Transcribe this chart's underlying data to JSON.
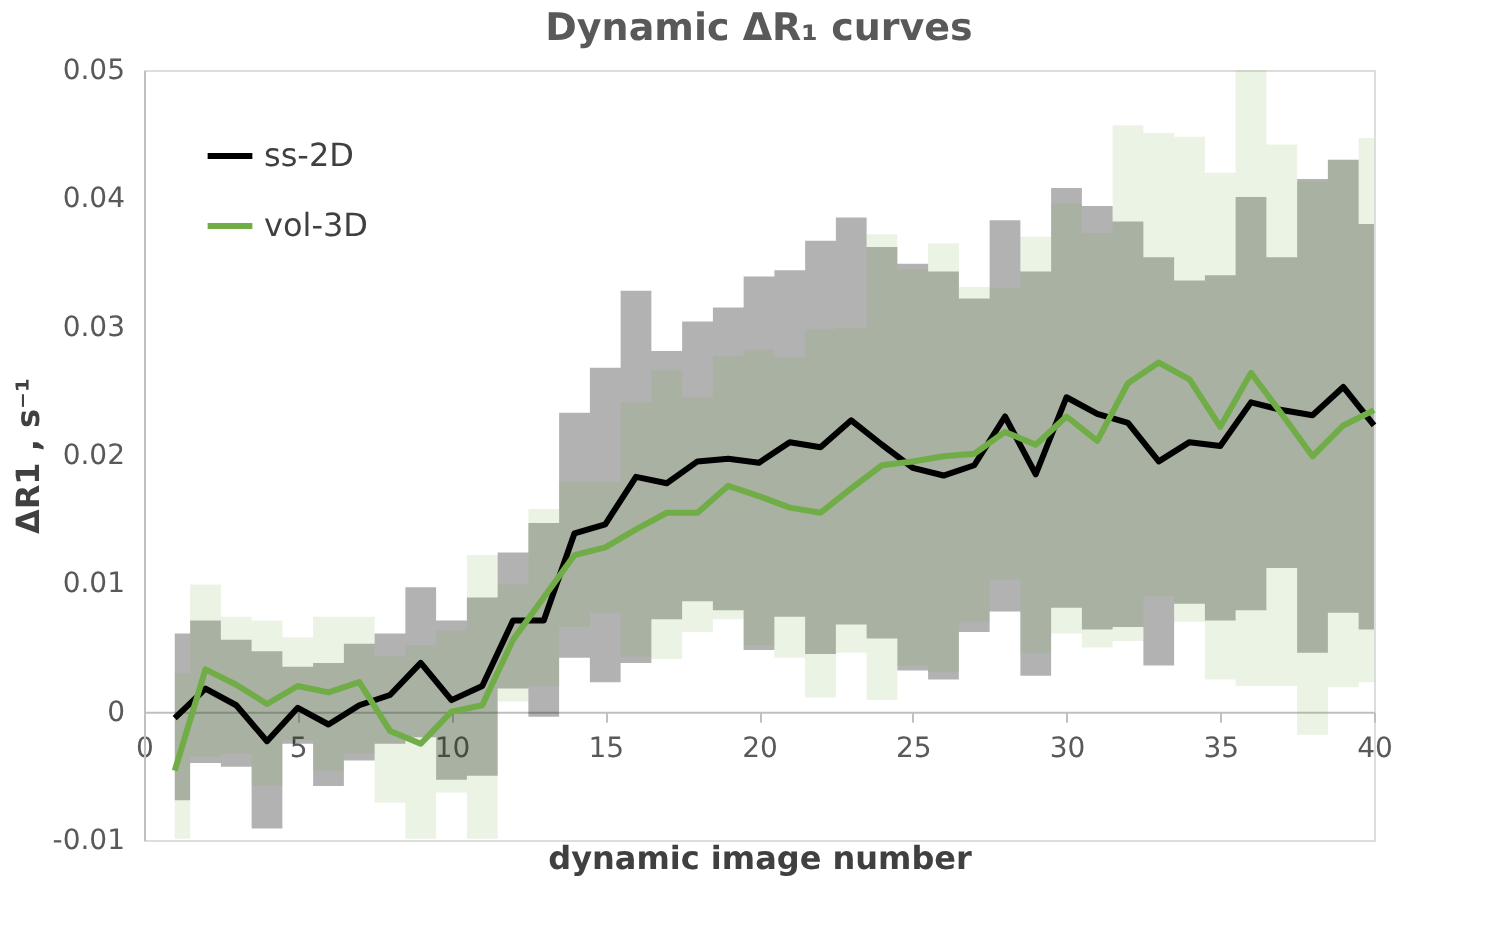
{
  "chart_data": {
    "type": "line",
    "title": "Dynamic ΔR₁ curves",
    "xlabel": "dynamic image number",
    "ylabel": "ΔR1 , s⁻¹",
    "x": [
      1,
      2,
      3,
      4,
      5,
      6,
      7,
      8,
      9,
      10,
      11,
      12,
      13,
      14,
      15,
      16,
      17,
      18,
      19,
      20,
      21,
      22,
      23,
      24,
      25,
      26,
      27,
      28,
      29,
      30,
      31,
      32,
      33,
      34,
      35,
      36,
      37,
      38,
      39,
      40
    ],
    "series": [
      {
        "name": "ss-2D",
        "color": "#000000",
        "values": [
          -0.0005,
          0.0018,
          0.0005,
          -0.0023,
          0.0003,
          -0.001,
          0.0005,
          0.0013,
          0.0038,
          0.0009,
          0.002,
          0.0071,
          0.0071,
          0.0139,
          0.0146,
          0.0183,
          0.0178,
          0.0195,
          0.0197,
          0.0194,
          0.021,
          0.0206,
          0.0227,
          0.0208,
          0.019,
          0.0184,
          0.0192,
          0.023,
          0.0185,
          0.0245,
          0.0232,
          0.0225,
          0.0195,
          0.021,
          0.0207,
          0.0241,
          0.0235,
          0.0231,
          0.0253,
          0.0223
        ],
        "lower": [
          -0.0069,
          -0.004,
          -0.0043,
          -0.0091,
          -0.0025,
          -0.0058,
          -0.0038,
          -0.0025,
          -0.002,
          -0.0053,
          -0.005,
          0.0018,
          -0.0004,
          0.0042,
          0.0023,
          0.0038,
          0.0072,
          0.0086,
          0.0079,
          0.0048,
          0.0074,
          0.0045,
          0.0068,
          0.0057,
          0.0032,
          0.0025,
          0.0062,
          0.0078,
          0.0028,
          0.0081,
          0.0064,
          0.0066,
          0.0036,
          0.0084,
          0.0071,
          0.0079,
          0.0112,
          0.0046,
          0.0077,
          0.0064
        ],
        "upper": [
          0.0061,
          0.0071,
          0.0056,
          0.0047,
          0.0035,
          0.0038,
          0.0053,
          0.0061,
          0.0097,
          0.0071,
          0.0089,
          0.0124,
          0.0147,
          0.0233,
          0.0268,
          0.0328,
          0.0281,
          0.0304,
          0.0315,
          0.0339,
          0.0344,
          0.0367,
          0.0385,
          0.0362,
          0.0349,
          0.0343,
          0.0322,
          0.0383,
          0.0343,
          0.0408,
          0.0394,
          0.0382,
          0.0354,
          0.0336,
          0.034,
          0.0401,
          0.0354,
          0.0415,
          0.043,
          0.038
        ]
      },
      {
        "name": "vol-3D",
        "color": "#70ad47",
        "values": [
          -0.0046,
          0.0033,
          0.0021,
          0.0006,
          0.002,
          0.0015,
          0.0023,
          -0.0015,
          -0.0025,
          0.0,
          0.0005,
          0.0056,
          0.0089,
          0.0122,
          0.0128,
          0.0142,
          0.0155,
          0.0155,
          0.0176,
          0.0168,
          0.0159,
          0.0155,
          0.0174,
          0.0192,
          0.0195,
          0.0199,
          0.0201,
          0.0218,
          0.0208,
          0.023,
          0.0211,
          0.0256,
          0.0272,
          0.0259,
          0.0222,
          0.0264,
          0.0232,
          0.0199,
          0.0223,
          0.0235
        ],
        "lower": [
          -0.0099,
          -0.0035,
          -0.0033,
          -0.0058,
          -0.0022,
          -0.0046,
          -0.0033,
          -0.0071,
          -0.0099,
          -0.0063,
          -0.0099,
          0.0008,
          0.002,
          0.0066,
          0.0077,
          0.0043,
          0.0041,
          0.0062,
          0.0072,
          0.0052,
          0.0042,
          0.0011,
          0.0046,
          0.0009,
          0.0036,
          0.0031,
          0.007,
          0.0103,
          0.0046,
          0.0061,
          0.005,
          0.0055,
          0.009,
          0.007,
          0.0025,
          0.002,
          0.002,
          -0.0018,
          0.0019,
          0.0023
        ],
        "upper": [
          0.003,
          0.0099,
          0.0074,
          0.0071,
          0.0058,
          0.0074,
          0.0074,
          0.0043,
          0.0052,
          0.0063,
          0.0122,
          0.0099,
          0.0158,
          0.0179,
          0.0179,
          0.0241,
          0.0266,
          0.0245,
          0.0277,
          0.0282,
          0.0276,
          0.0298,
          0.0299,
          0.0372,
          0.0345,
          0.0365,
          0.0331,
          0.033,
          0.037,
          0.0396,
          0.0373,
          0.0457,
          0.0451,
          0.0448,
          0.042,
          0.05,
          0.0442,
          0.0413,
          0.043,
          0.0447
        ]
      }
    ],
    "xlim": [
      0,
      40
    ],
    "xticks": [
      0,
      5,
      10,
      15,
      20,
      25,
      30,
      35,
      40
    ],
    "ylim": [
      -0.01,
      0.05
    ],
    "yticks": [
      -0.01,
      0,
      0.01,
      0.02,
      0.03,
      0.04,
      0.05
    ],
    "grid": false,
    "legend": "top left",
    "marker": "none",
    "line_style": "solid"
  }
}
